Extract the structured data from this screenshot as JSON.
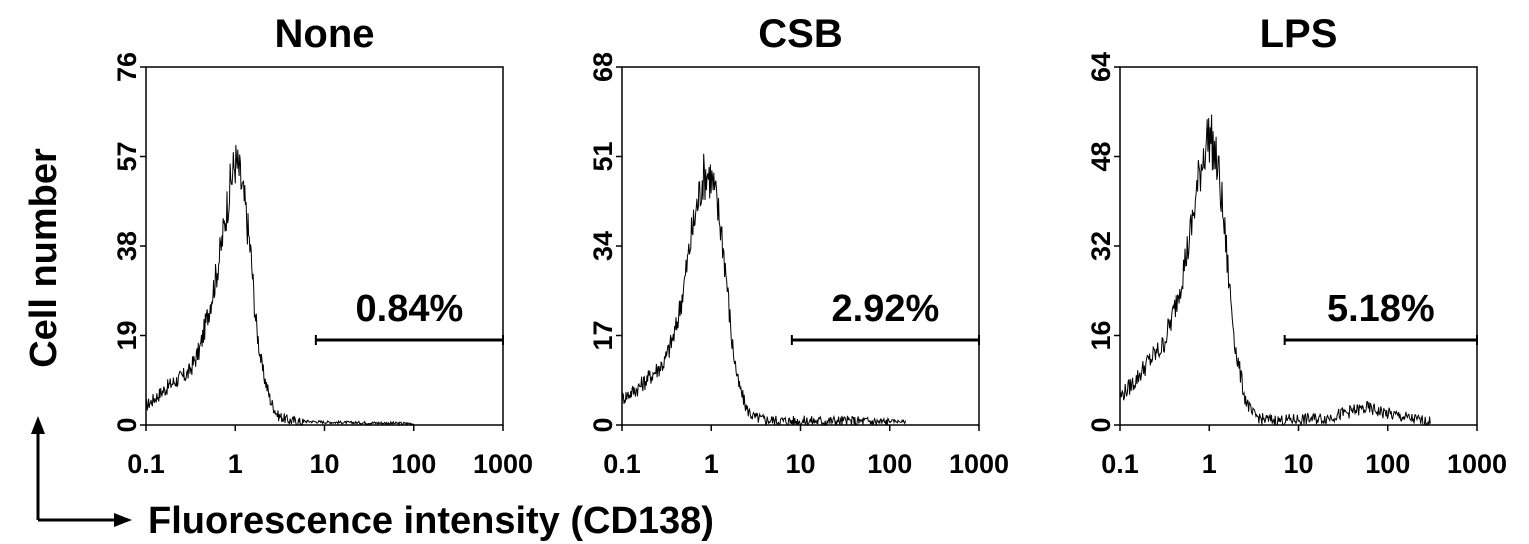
{
  "figure": {
    "ylabel": "Cell number",
    "xlabel": "Fluorescence intensity (CD138)"
  },
  "chart_data": [
    {
      "type": "area",
      "title": "None",
      "xscale": "log",
      "xlim": [
        0.1,
        1000
      ],
      "ylim": [
        0,
        76
      ],
      "xticks": [
        "0.1",
        "1",
        "10",
        "100",
        "1000"
      ],
      "yticks": [
        "0",
        "19",
        "38",
        "57",
        "76"
      ],
      "x": [
        0.1,
        0.15,
        0.2,
        0.3,
        0.4,
        0.5,
        0.6,
        0.7,
        0.8,
        0.9,
        1.0,
        1.1,
        1.3,
        1.5,
        1.7,
        2.0,
        2.5,
        3.0,
        4.0,
        6.0,
        10,
        20,
        50,
        100
      ],
      "y": [
        4,
        7,
        9,
        11,
        16,
        24,
        31,
        38,
        46,
        52,
        56,
        54,
        46,
        36,
        22,
        12,
        5,
        2,
        1,
        0.5,
        0.3,
        0.2,
        0.1,
        0
      ],
      "gate": {
        "from": 8,
        "to": 1000,
        "label": "0.84%"
      }
    },
    {
      "type": "area",
      "title": "CSB",
      "xscale": "log",
      "xlim": [
        0.1,
        1000
      ],
      "ylim": [
        0,
        68
      ],
      "xticks": [
        "0.1",
        "1",
        "10",
        "100",
        "1000"
      ],
      "yticks": [
        "0",
        "17",
        "34",
        "51",
        "68"
      ],
      "x": [
        0.1,
        0.15,
        0.2,
        0.3,
        0.4,
        0.5,
        0.6,
        0.7,
        0.8,
        0.9,
        1.0,
        1.1,
        1.3,
        1.5,
        1.7,
        2.0,
        2.5,
        3.0,
        4.0,
        6.0,
        10,
        20,
        50,
        100,
        150
      ],
      "y": [
        5,
        7,
        9,
        12,
        18,
        27,
        36,
        42,
        47,
        48,
        47,
        44,
        37,
        27,
        16,
        8,
        3,
        1.5,
        1,
        0.8,
        0.7,
        0.8,
        0.7,
        0.5,
        0.3
      ],
      "gate": {
        "from": 8,
        "to": 1000,
        "label": "2.92%"
      }
    },
    {
      "type": "area",
      "title": "LPS",
      "xscale": "log",
      "xlim": [
        0.1,
        1000
      ],
      "ylim": [
        0,
        64
      ],
      "xticks": [
        "0.1",
        "1",
        "10",
        "100",
        "1000"
      ],
      "yticks": [
        "0",
        "16",
        "32",
        "48",
        "64"
      ],
      "x": [
        0.1,
        0.15,
        0.2,
        0.3,
        0.4,
        0.5,
        0.6,
        0.7,
        0.8,
        0.9,
        1.0,
        1.1,
        1.3,
        1.5,
        1.7,
        2.0,
        2.5,
        3.0,
        4.0,
        6.0,
        10,
        20,
        40,
        60,
        100,
        200,
        300
      ],
      "y": [
        5,
        8,
        11,
        14,
        20,
        27,
        33,
        40,
        46,
        50,
        52,
        50,
        44,
        34,
        24,
        13,
        5,
        2,
        1,
        0.8,
        1,
        1.2,
        2.5,
        3,
        2,
        1,
        0.5
      ],
      "gate": {
        "from": 7,
        "to": 1000,
        "label": "5.18%"
      }
    }
  ]
}
